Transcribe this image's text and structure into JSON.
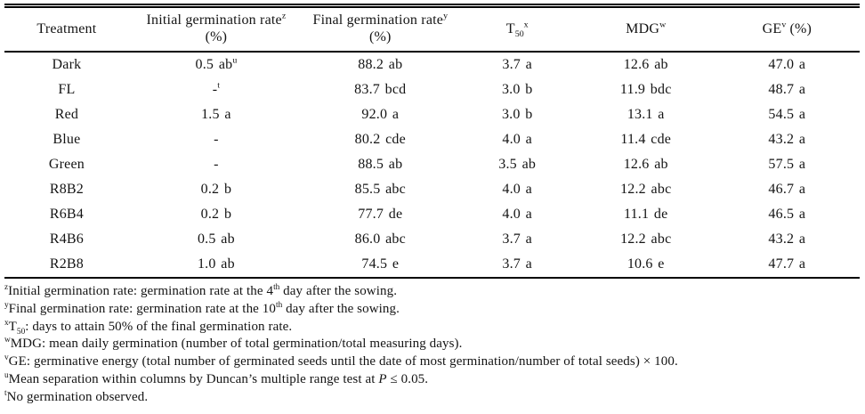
{
  "colors": {
    "text": "#141414",
    "rule": "#000000",
    "background": "#ffffff"
  },
  "table": {
    "header": [
      {
        "line1": [
          {
            "t": "Treatment"
          }
        ]
      },
      {
        "line1": [
          {
            "t": "Initial germination rate"
          },
          {
            "sup": "z"
          }
        ],
        "line2": [
          {
            "t": "(%)"
          }
        ]
      },
      {
        "line1": [
          {
            "t": "Final germination rate"
          },
          {
            "sup": "y"
          }
        ],
        "line2": [
          {
            "t": "(%)"
          }
        ]
      },
      {
        "line1": [
          {
            "t": "T"
          },
          {
            "sub": "50"
          },
          {
            "sup": "x"
          }
        ]
      },
      {
        "line1": [
          {
            "t": "MDG"
          },
          {
            "sup": "w"
          }
        ]
      },
      {
        "line1": [
          {
            "t": "GE"
          },
          {
            "sup": "v"
          },
          {
            "t": " (%)"
          }
        ]
      }
    ],
    "rows": [
      {
        "name": "dark",
        "cells": [
          [
            {
              "t": "Dark"
            }
          ],
          [
            {
              "t": "0.5 ab"
            },
            {
              "sup": "u"
            }
          ],
          [
            {
              "t": "88.2 ab"
            }
          ],
          [
            {
              "t": "3.7 a"
            }
          ],
          [
            {
              "t": "12.6 ab"
            }
          ],
          [
            {
              "t": "47.0 a"
            }
          ]
        ]
      },
      {
        "name": "fl",
        "cells": [
          [
            {
              "t": "FL"
            }
          ],
          [
            {
              "t": "-"
            },
            {
              "sup": "t"
            }
          ],
          [
            {
              "t": "83.7 bcd"
            }
          ],
          [
            {
              "t": "3.0 b"
            }
          ],
          [
            {
              "t": "11.9 bdc"
            }
          ],
          [
            {
              "t": "48.7 a"
            }
          ]
        ]
      },
      {
        "name": "red",
        "cells": [
          [
            {
              "t": "Red"
            }
          ],
          [
            {
              "t": "1.5 a"
            }
          ],
          [
            {
              "t": "92.0 a"
            }
          ],
          [
            {
              "t": "3.0 b"
            }
          ],
          [
            {
              "t": "13.1 a"
            }
          ],
          [
            {
              "t": "54.5 a"
            }
          ]
        ]
      },
      {
        "name": "blue",
        "cells": [
          [
            {
              "t": "Blue"
            }
          ],
          [
            {
              "t": "-"
            }
          ],
          [
            {
              "t": "80.2 cde"
            }
          ],
          [
            {
              "t": "4.0 a"
            }
          ],
          [
            {
              "t": "11.4 cde"
            }
          ],
          [
            {
              "t": "43.2 a"
            }
          ]
        ]
      },
      {
        "name": "green",
        "cells": [
          [
            {
              "t": "Green"
            }
          ],
          [
            {
              "t": "-"
            }
          ],
          [
            {
              "t": "88.5 ab"
            }
          ],
          [
            {
              "t": "3.5 ab"
            }
          ],
          [
            {
              "t": "12.6 ab"
            }
          ],
          [
            {
              "t": "57.5 a"
            }
          ]
        ]
      },
      {
        "name": "r8b2",
        "cells": [
          [
            {
              "t": "R8B2"
            }
          ],
          [
            {
              "t": "0.2 b"
            }
          ],
          [
            {
              "t": "85.5 abc"
            }
          ],
          [
            {
              "t": "4.0 a"
            }
          ],
          [
            {
              "t": "12.2 abc"
            }
          ],
          [
            {
              "t": "46.7 a"
            }
          ]
        ]
      },
      {
        "name": "r6b4",
        "cells": [
          [
            {
              "t": "R6B4"
            }
          ],
          [
            {
              "t": "0.2 b"
            }
          ],
          [
            {
              "t": "77.7 de"
            }
          ],
          [
            {
              "t": "4.0 a"
            }
          ],
          [
            {
              "t": "11.1 de"
            }
          ],
          [
            {
              "t": "46.5 a"
            }
          ]
        ]
      },
      {
        "name": "r4b6",
        "cells": [
          [
            {
              "t": "R4B6"
            }
          ],
          [
            {
              "t": "0.5 ab"
            }
          ],
          [
            {
              "t": "86.0 abc"
            }
          ],
          [
            {
              "t": "3.7 a"
            }
          ],
          [
            {
              "t": "12.2 abc"
            }
          ],
          [
            {
              "t": "43.2 a"
            }
          ]
        ]
      },
      {
        "name": "r2b8",
        "cells": [
          [
            {
              "t": "R2B8"
            }
          ],
          [
            {
              "t": "1.0 ab"
            }
          ],
          [
            {
              "t": "74.5 e"
            }
          ],
          [
            {
              "t": "3.7 a"
            }
          ],
          [
            {
              "t": "10.6 e"
            }
          ],
          [
            {
              "t": "47.7 a"
            }
          ]
        ]
      }
    ]
  },
  "footnotes": [
    {
      "name": "z",
      "segs": [
        {
          "sup": "z"
        },
        {
          "t": "Initial germination rate: germination rate at the 4"
        },
        {
          "sup": "th"
        },
        {
          "t": " day after the sowing."
        }
      ]
    },
    {
      "name": "y",
      "segs": [
        {
          "sup": "y"
        },
        {
          "t": "Final germination rate: germination rate at the 10"
        },
        {
          "sup": "th"
        },
        {
          "t": " day after the sowing."
        }
      ]
    },
    {
      "name": "x",
      "segs": [
        {
          "sup": "x"
        },
        {
          "t": "T"
        },
        {
          "sub": "50"
        },
        {
          "t": ": days to attain 50% of the final germination rate."
        }
      ]
    },
    {
      "name": "w",
      "segs": [
        {
          "sup": "w"
        },
        {
          "t": "MDG: mean daily germination (number of total germination/total measuring days)."
        }
      ]
    },
    {
      "name": "v",
      "segs": [
        {
          "sup": "v"
        },
        {
          "t": "GE: germinative energy (total number of germinated seeds until the date of most germination/number of total seeds) × 100."
        }
      ]
    },
    {
      "name": "u",
      "segs": [
        {
          "sup": "u"
        },
        {
          "t": "Mean separation within columns by Duncan’s multiple range test at "
        },
        {
          "i": "P"
        },
        {
          "t": " ≤ 0.05."
        }
      ]
    },
    {
      "name": "t",
      "segs": [
        {
          "sup": "t"
        },
        {
          "t": "No germination observed."
        }
      ]
    }
  ]
}
